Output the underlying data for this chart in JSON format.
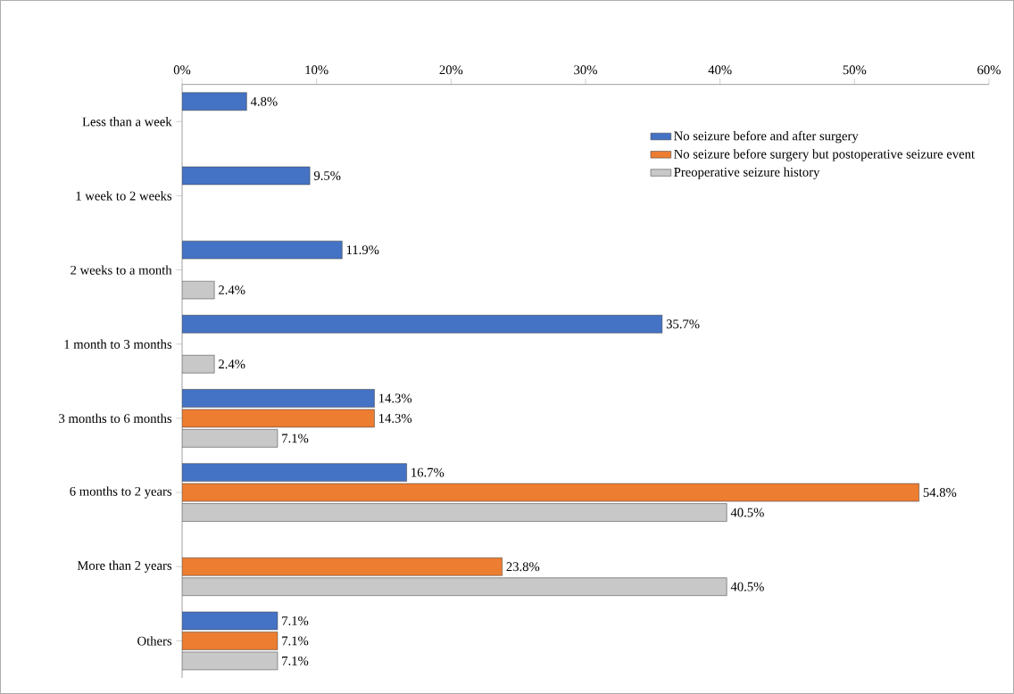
{
  "chart_data": {
    "type": "bar",
    "orientation": "horizontal",
    "categories": [
      "Less than a week",
      "1 week to 2 weeks",
      "2 weeks to a month",
      "1 month to 3 months",
      "3 months to 6 months",
      "6 months to 2 years",
      "More than 2 years",
      "Others"
    ],
    "series": [
      {
        "name": "No seizure before and after surgery",
        "color": "#4472c4",
        "values": [
          4.8,
          9.5,
          11.9,
          35.7,
          14.3,
          16.7,
          null,
          7.1
        ],
        "value_labels": [
          "4.8%",
          "9.5%",
          "11.9%",
          "35.7%",
          "14.3%",
          "16.7%",
          null,
          "7.1%"
        ]
      },
      {
        "name": "No seizure before surgery but postoperative seizure event",
        "color": "#ed7d31",
        "values": [
          null,
          null,
          null,
          null,
          14.3,
          54.8,
          23.8,
          7.1
        ],
        "value_labels": [
          null,
          null,
          null,
          null,
          "14.3%",
          "54.8%",
          "23.8%",
          "7.1%"
        ]
      },
      {
        "name": "Preoperative seizure history",
        "color": "#c8c8c8",
        "values": [
          null,
          null,
          2.4,
          2.4,
          7.1,
          40.5,
          40.5,
          7.1
        ],
        "value_labels": [
          null,
          null,
          "2.4%",
          "2.4%",
          "7.1%",
          "40.5%",
          "40.5%",
          "7.1%"
        ]
      }
    ],
    "xlim": [
      0,
      60
    ],
    "xticks": [
      {
        "value": 0,
        "label": "0%"
      },
      {
        "value": 10,
        "label": "10%"
      },
      {
        "value": 20,
        "label": "20%"
      },
      {
        "value": 30,
        "label": "30%"
      },
      {
        "value": 40,
        "label": "40%"
      },
      {
        "value": 50,
        "label": "50%"
      },
      {
        "value": 60,
        "label": "60%"
      }
    ],
    "grid": false,
    "legend": "top right"
  }
}
